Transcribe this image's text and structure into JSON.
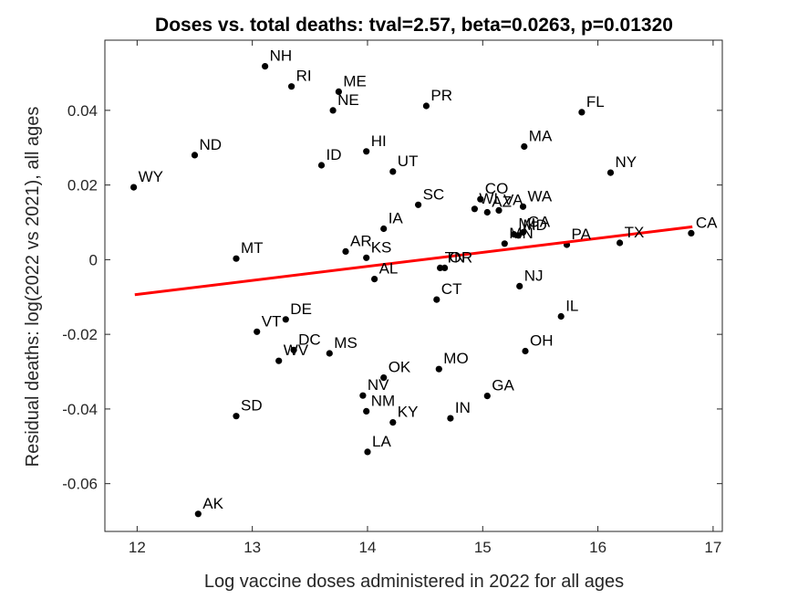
{
  "chart_data": {
    "type": "scatter",
    "title": "Doses vs. total deaths: tval=2.57, beta=0.0263, p=0.01320",
    "xlabel": "Log vaccine doses administered in 2022 for all ages",
    "ylabel": "Residual deaths: log(2022 vs 2021), all ages",
    "xlim": [
      11.72,
      17.08
    ],
    "ylim": [
      -0.0728,
      0.0588
    ],
    "xticks": [
      12,
      13,
      14,
      15,
      16,
      17
    ],
    "xtick_labels": [
      "12",
      "13",
      "14",
      "15",
      "16",
      "17"
    ],
    "yticks": [
      -0.06,
      -0.04,
      -0.02,
      0,
      0.02,
      0.04
    ],
    "ytick_labels": [
      "-0.06",
      "-0.04",
      "-0.02",
      "0",
      "0.02",
      "0.04"
    ],
    "grid": false,
    "point_color": "#000000",
    "fit_line_color": "#ff0000",
    "fit_line": {
      "x": [
        11.98,
        16.82
      ],
      "y": [
        -0.0094,
        0.0088
      ]
    },
    "points": [
      {
        "label": "NH",
        "x": 13.11,
        "y": 0.0518
      },
      {
        "label": "RI",
        "x": 13.34,
        "y": 0.0464
      },
      {
        "label": "ME",
        "x": 13.75,
        "y": 0.045
      },
      {
        "label": "NE",
        "x": 13.7,
        "y": 0.04
      },
      {
        "label": "PR",
        "x": 14.51,
        "y": 0.0412
      },
      {
        "label": "FL",
        "x": 15.86,
        "y": 0.0395
      },
      {
        "label": "MA",
        "x": 15.36,
        "y": 0.0303
      },
      {
        "label": "ND",
        "x": 12.5,
        "y": 0.028
      },
      {
        "label": "HI",
        "x": 13.99,
        "y": 0.029
      },
      {
        "label": "ID",
        "x": 13.6,
        "y": 0.0253
      },
      {
        "label": "UT",
        "x": 14.22,
        "y": 0.0236
      },
      {
        "label": "NY",
        "x": 16.11,
        "y": 0.0233
      },
      {
        "label": "WY",
        "x": 11.97,
        "y": 0.0194
      },
      {
        "label": "SC",
        "x": 14.44,
        "y": 0.0147
      },
      {
        "label": "CO",
        "x": 14.98,
        "y": 0.0162
      },
      {
        "label": "WI",
        "x": 14.93,
        "y": 0.0136
      },
      {
        "label": "AZ",
        "x": 15.04,
        "y": 0.0127
      },
      {
        "label": "VA",
        "x": 15.14,
        "y": 0.0132
      },
      {
        "label": "WA",
        "x": 15.35,
        "y": 0.0142
      },
      {
        "label": "MN",
        "x": 15.19,
        "y": 0.0043
      },
      {
        "label": "MI",
        "x": 15.27,
        "y": 0.0068
      },
      {
        "label": "MD",
        "x": 15.31,
        "y": 0.0065
      },
      {
        "label": "GA",
        "x": 15.35,
        "y": 0.0073
      },
      {
        "label": "PA",
        "x": 15.73,
        "y": 0.004
      },
      {
        "label": "TX",
        "x": 16.19,
        "y": 0.0045
      },
      {
        "label": "CA",
        "x": 16.81,
        "y": 0.0071
      },
      {
        "label": "IA",
        "x": 14.14,
        "y": 0.0083
      },
      {
        "label": "AR",
        "x": 13.81,
        "y": 0.0022
      },
      {
        "label": "KS",
        "x": 13.99,
        "y": 0.0005
      },
      {
        "label": "AL",
        "x": 14.06,
        "y": -0.0052
      },
      {
        "label": "MT",
        "x": 12.86,
        "y": 0.0003
      },
      {
        "label": "TN",
        "x": 14.63,
        "y": -0.0022
      },
      {
        "label": "OR",
        "x": 14.67,
        "y": -0.0022
      },
      {
        "label": "NJ",
        "x": 15.32,
        "y": -0.0071
      },
      {
        "label": "CT",
        "x": 14.6,
        "y": -0.0107
      },
      {
        "label": "IL",
        "x": 15.68,
        "y": -0.0152
      },
      {
        "label": "DE",
        "x": 13.29,
        "y": -0.016
      },
      {
        "label": "VT",
        "x": 13.04,
        "y": -0.0193
      },
      {
        "label": "DC",
        "x": 13.36,
        "y": -0.0242
      },
      {
        "label": "WV",
        "x": 13.23,
        "y": -0.0271
      },
      {
        "label": "MS",
        "x": 13.67,
        "y": -0.0251
      },
      {
        "label": "OH",
        "x": 15.37,
        "y": -0.0245
      },
      {
        "label": "MO",
        "x": 14.62,
        "y": -0.0293
      },
      {
        "label": "OK",
        "x": 14.14,
        "y": -0.0316
      },
      {
        "label": "NV",
        "x": 13.96,
        "y": -0.0364
      },
      {
        "label": "NM",
        "x": 13.99,
        "y": -0.0406
      },
      {
        "label": "GA",
        "x": 15.04,
        "y": -0.0365
      },
      {
        "label": "IN",
        "x": 14.72,
        "y": -0.0425
      },
      {
        "label": "KY",
        "x": 14.22,
        "y": -0.0436
      },
      {
        "label": "SD",
        "x": 12.86,
        "y": -0.0419
      },
      {
        "label": "LA",
        "x": 14.0,
        "y": -0.0515
      },
      {
        "label": "AK",
        "x": 12.53,
        "y": -0.0681
      }
    ]
  }
}
